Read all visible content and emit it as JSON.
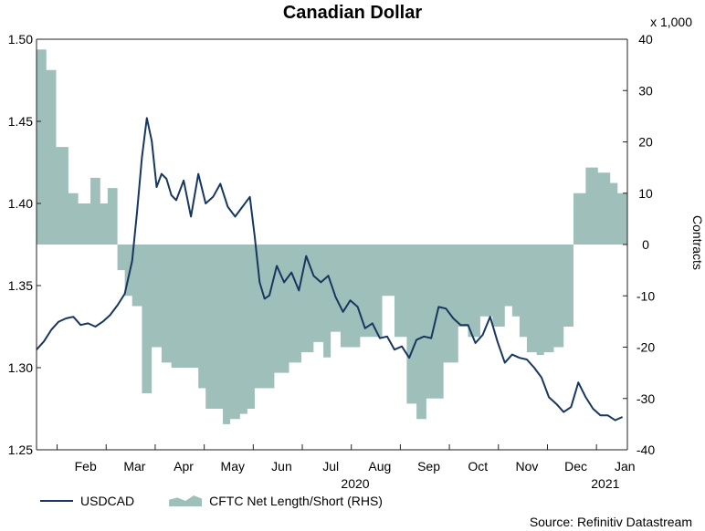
{
  "chart_data": {
    "type": "line+area",
    "title": "Canadian Dollar",
    "ylabel_right": "Contracts",
    "right_scale_label": "x 1,000",
    "left_ylim": [
      1.25,
      1.5
    ],
    "left_ticks": [
      "1.25",
      "1.30",
      "1.35",
      "1.40",
      "1.45",
      "1.50"
    ],
    "right_ylim": [
      -40,
      40
    ],
    "right_ticks": [
      "-40",
      "-30",
      "-20",
      "-10",
      "0",
      "10",
      "20",
      "30",
      "40"
    ],
    "x_months": [
      "Feb",
      "Mar",
      "Apr",
      "May",
      "Jun",
      "Jul",
      "Aug",
      "Sep",
      "Oct",
      "Nov",
      "Dec",
      "Jan"
    ],
    "year_labels": [
      {
        "label": "2020",
        "at": 6.5
      },
      {
        "label": "2021",
        "at": 11.6
      }
    ],
    "series": [
      {
        "name": "USDCAD",
        "axis": "left",
        "x": [
          0.0,
          0.15,
          0.3,
          0.45,
          0.6,
          0.75,
          0.9,
          1.05,
          1.2,
          1.35,
          1.5,
          1.65,
          1.8,
          1.95,
          2.05,
          2.15,
          2.25,
          2.35,
          2.45,
          2.55,
          2.65,
          2.75,
          2.85,
          3.0,
          3.15,
          3.3,
          3.45,
          3.6,
          3.75,
          3.9,
          4.05,
          4.2,
          4.35,
          4.45,
          4.55,
          4.65,
          4.75,
          4.9,
          5.05,
          5.2,
          5.35,
          5.5,
          5.65,
          5.8,
          5.95,
          6.1,
          6.25,
          6.4,
          6.55,
          6.7,
          6.85,
          7.0,
          7.15,
          7.3,
          7.45,
          7.6,
          7.75,
          7.9,
          8.05,
          8.2,
          8.35,
          8.5,
          8.65,
          8.8,
          8.95,
          9.1,
          9.25,
          9.4,
          9.55,
          9.7,
          9.85,
          10.0,
          10.15,
          10.3,
          10.45,
          10.6,
          10.75,
          10.9,
          11.05,
          11.2,
          11.35,
          11.5,
          11.65,
          11.8,
          11.95
        ],
        "values": [
          1.311,
          1.316,
          1.323,
          1.328,
          1.33,
          1.331,
          1.326,
          1.327,
          1.325,
          1.328,
          1.332,
          1.338,
          1.345,
          1.365,
          1.395,
          1.428,
          1.452,
          1.438,
          1.41,
          1.418,
          1.415,
          1.405,
          1.402,
          1.414,
          1.392,
          1.418,
          1.4,
          1.404,
          1.412,
          1.398,
          1.392,
          1.398,
          1.404,
          1.38,
          1.352,
          1.342,
          1.344,
          1.362,
          1.352,
          1.358,
          1.347,
          1.368,
          1.356,
          1.352,
          1.356,
          1.343,
          1.334,
          1.341,
          1.337,
          1.324,
          1.327,
          1.318,
          1.319,
          1.311,
          1.313,
          1.306,
          1.317,
          1.319,
          1.318,
          1.337,
          1.336,
          1.33,
          1.326,
          1.326,
          1.315,
          1.32,
          1.331,
          1.316,
          1.303,
          1.308,
          1.306,
          1.305,
          1.3,
          1.294,
          1.282,
          1.278,
          1.273,
          1.276,
          1.291,
          1.282,
          1.275,
          1.271,
          1.271,
          1.268,
          1.27
        ]
      },
      {
        "name": "CFTC Net Length/Short (RHS)",
        "axis": "right",
        "type": "step-area",
        "steps": [
          [
            0.0,
            38
          ],
          [
            0.2,
            34
          ],
          [
            0.4,
            19
          ],
          [
            0.65,
            10
          ],
          [
            0.85,
            8
          ],
          [
            1.1,
            13
          ],
          [
            1.3,
            8
          ],
          [
            1.45,
            11
          ],
          [
            1.65,
            -5
          ],
          [
            1.8,
            -10
          ],
          [
            1.95,
            -12
          ],
          [
            2.15,
            -29
          ],
          [
            2.35,
            -20
          ],
          [
            2.55,
            -23
          ],
          [
            2.75,
            -24
          ],
          [
            3.3,
            -28
          ],
          [
            3.45,
            -32
          ],
          [
            3.8,
            -35
          ],
          [
            3.95,
            -34
          ],
          [
            4.15,
            -33
          ],
          [
            4.3,
            -32
          ],
          [
            4.45,
            -28
          ],
          [
            4.85,
            -25
          ],
          [
            5.15,
            -23
          ],
          [
            5.4,
            -21
          ],
          [
            5.65,
            -19
          ],
          [
            5.85,
            -22
          ],
          [
            6.0,
            -17
          ],
          [
            6.2,
            -20
          ],
          [
            6.6,
            -18
          ],
          [
            7.05,
            -10
          ],
          [
            7.3,
            -18
          ],
          [
            7.55,
            -31
          ],
          [
            7.75,
            -34
          ],
          [
            7.95,
            -30
          ],
          [
            8.3,
            -23
          ],
          [
            8.6,
            -16
          ],
          [
            8.8,
            -18
          ],
          [
            9.05,
            -14
          ],
          [
            9.3,
            -16
          ],
          [
            9.55,
            -12
          ],
          [
            9.7,
            -14
          ],
          [
            9.85,
            -18
          ],
          [
            10.0,
            -21
          ],
          [
            10.2,
            -21.5
          ],
          [
            10.35,
            -21
          ],
          [
            10.55,
            -20
          ],
          [
            10.75,
            -16
          ],
          [
            10.95,
            10
          ],
          [
            11.2,
            15
          ],
          [
            11.45,
            14
          ],
          [
            11.7,
            12
          ],
          [
            11.85,
            10
          ],
          [
            12.05,
            10
          ]
        ]
      }
    ],
    "legend": [
      {
        "label": "USDCAD"
      },
      {
        "label": "CFTC Net Length/Short (RHS)"
      }
    ],
    "source": "Source: Refinitiv Datastream",
    "colors": {
      "line": "#17375e",
      "area": "#9fbfbb",
      "axis": "#222222"
    }
  }
}
